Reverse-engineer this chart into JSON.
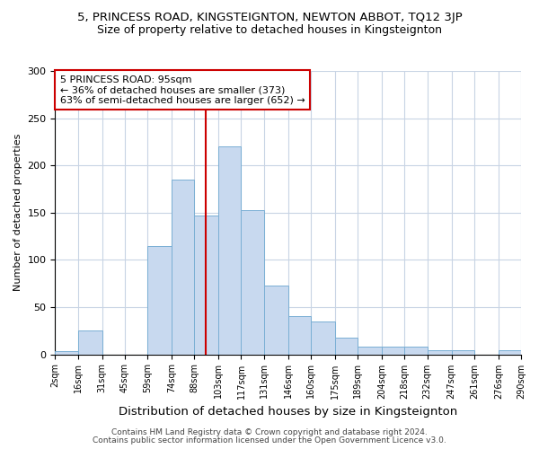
{
  "title1": "5, PRINCESS ROAD, KINGSTEIGNTON, NEWTON ABBOT, TQ12 3JP",
  "title2": "Size of property relative to detached houses in Kingsteignton",
  "xlabel": "Distribution of detached houses by size in Kingsteignton",
  "ylabel": "Number of detached properties",
  "footnote1": "Contains HM Land Registry data © Crown copyright and database right 2024.",
  "footnote2": "Contains public sector information licensed under the Open Government Licence v3.0.",
  "annotation_title": "5 PRINCESS ROAD: 95sqm",
  "annotation_line1": "← 36% of detached houses are smaller (373)",
  "annotation_line2": "63% of semi-detached houses are larger (652) →",
  "property_size": 95,
  "bar_bins": [
    2,
    16,
    31,
    45,
    59,
    74,
    88,
    103,
    117,
    131,
    146,
    160,
    175,
    189,
    204,
    218,
    232,
    247,
    261,
    276,
    290
  ],
  "bar_heights": [
    3,
    25,
    0,
    0,
    115,
    185,
    147,
    220,
    153,
    73,
    40,
    35,
    18,
    8,
    8,
    8,
    4,
    4,
    0,
    4
  ],
  "bar_color": "#c8d9ef",
  "bar_edge_color": "#7aafd4",
  "vline_color": "#cc0000",
  "annotation_box_color": "#ffffff",
  "annotation_box_edge": "#cc0000",
  "background_color": "#ffffff",
  "grid_color": "#c8d4e4",
  "ylim": [
    0,
    300
  ],
  "title1_fontsize": 9.5,
  "title2_fontsize": 9,
  "xlabel_fontsize": 9.5,
  "ylabel_fontsize": 8,
  "tick_fontsize": 7,
  "annotation_fontsize": 8,
  "footnote_fontsize": 6.5,
  "bin_labels": [
    "2sqm",
    "16sqm",
    "31sqm",
    "45sqm",
    "59sqm",
    "74sqm",
    "88sqm",
    "103sqm",
    "117sqm",
    "131sqm",
    "146sqm",
    "160sqm",
    "175sqm",
    "189sqm",
    "204sqm",
    "218sqm",
    "232sqm",
    "247sqm",
    "261sqm",
    "276sqm",
    "290sqm"
  ]
}
